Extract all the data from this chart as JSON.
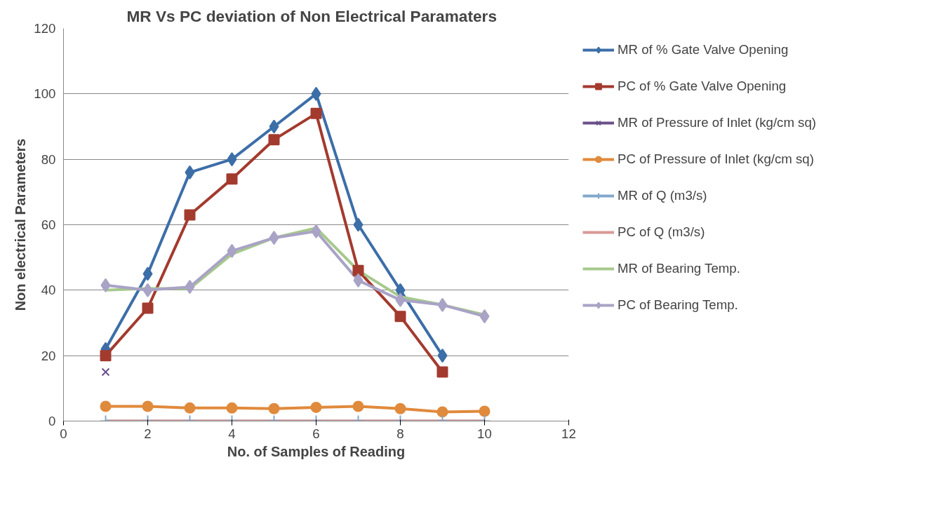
{
  "chart_data": {
    "type": "line",
    "title": "MR Vs PC  deviation of  Non Electrical Paramaters",
    "xlabel": "No. of Samples of Reading",
    "ylabel": "Non electrical Parameters",
    "x": [
      1,
      2,
      3,
      4,
      5,
      6,
      7,
      8,
      9,
      10
    ],
    "series": [
      {
        "name": "MR of % Gate Valve Opening",
        "color": "#3c6ea8",
        "marker": "diamond",
        "values": [
          22,
          45,
          76,
          80,
          90,
          100,
          60,
          40,
          20,
          null
        ]
      },
      {
        "name": "PC of % Gate Valve Opening",
        "color": "#a33a2e",
        "marker": "square",
        "values": [
          20,
          34.5,
          63,
          74,
          86,
          94,
          46,
          32,
          15,
          null
        ]
      },
      {
        "name": "MR of Pressure of Inlet (kg/cm sq)",
        "color": "#6a4f8a",
        "marker": "x",
        "values": [
          15,
          null,
          null,
          null,
          null,
          null,
          null,
          null,
          null,
          null
        ]
      },
      {
        "name": "PC of Pressure of Inlet (kg/cm sq)",
        "color": "#e08a3c",
        "marker": "circle",
        "values": [
          4.5,
          4.5,
          4,
          4,
          3.8,
          4.2,
          4.5,
          3.8,
          2.8,
          3
        ]
      },
      {
        "name": "MR of Q (m3/s)",
        "color": "#82a8cc",
        "marker": "cross",
        "values": [
          0,
          0,
          0,
          0,
          0,
          0,
          0,
          0,
          0,
          0
        ]
      },
      {
        "name": "PC of Q (m3/s)",
        "color": "#d89a98",
        "marker": "none",
        "values": [
          0,
          0,
          0,
          0,
          0,
          0,
          0,
          0,
          0,
          0
        ]
      },
      {
        "name": "MR of Bearing Temp.",
        "color": "#a6c98c",
        "marker": "none",
        "values": [
          40,
          40.5,
          40.5,
          51,
          56,
          59,
          46,
          38,
          35.5,
          32.5
        ]
      },
      {
        "name": "PC of Bearing Temp.",
        "color": "#a9a3c6",
        "marker": "diamond",
        "values": [
          41.5,
          40,
          41,
          52,
          56,
          58,
          43,
          37,
          35.5,
          32
        ]
      }
    ],
    "xlim": [
      0,
      12
    ],
    "xticks": [
      0,
      2,
      4,
      6,
      8,
      10,
      12
    ],
    "ylim": [
      0,
      120
    ],
    "yticks": [
      0,
      20,
      40,
      60,
      80,
      100,
      120
    ],
    "grid": "y",
    "legend": "right"
  }
}
